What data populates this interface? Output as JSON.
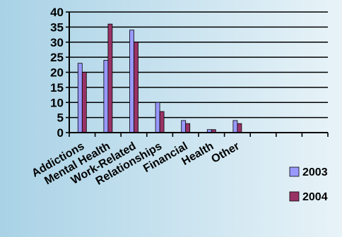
{
  "chart_data": {
    "type": "bar",
    "categories": [
      "Addictions",
      "Mental Health",
      "Work-Related",
      "Relationships",
      "Financial",
      "Health",
      "Other",
      "",
      "",
      ""
    ],
    "series": [
      {
        "name": "2003",
        "color": "#9999ff",
        "values": [
          23,
          24,
          34,
          10,
          4,
          1,
          4,
          null,
          null,
          null
        ]
      },
      {
        "name": "2004",
        "color": "#993366",
        "values": [
          20,
          36,
          30,
          7,
          3,
          1,
          3,
          null,
          null,
          null
        ]
      }
    ],
    "yticks": [
      0,
      5,
      10,
      15,
      20,
      25,
      30,
      35,
      40
    ],
    "ylim": [
      0,
      40
    ],
    "grid": true,
    "legend_position": "right",
    "background": [
      "#a9d2e6",
      "#e8f3f8"
    ]
  }
}
